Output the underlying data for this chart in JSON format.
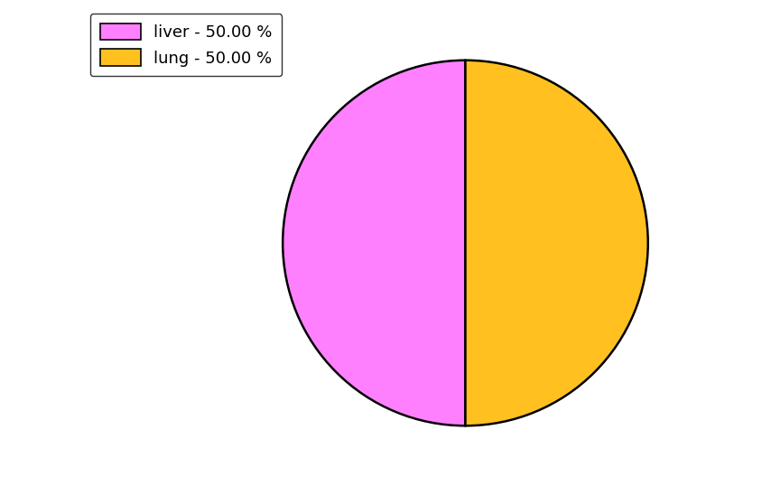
{
  "labels": [
    "liver",
    "lung"
  ],
  "values": [
    50.0,
    50.0
  ],
  "colors": [
    "#FF80FF",
    "#FFC020"
  ],
  "legend_labels": [
    "liver - 50.00 %",
    "lung - 50.00 %"
  ],
  "background_color": "#ffffff",
  "figsize": [
    8.45,
    5.38
  ],
  "dpi": 100,
  "startangle": 90,
  "counterclock": true
}
